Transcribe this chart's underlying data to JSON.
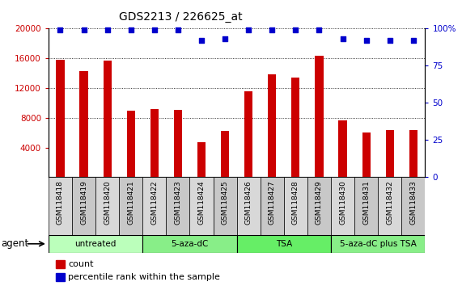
{
  "title": "GDS2213 / 226625_at",
  "samples": [
    "GSM118418",
    "GSM118419",
    "GSM118420",
    "GSM118421",
    "GSM118422",
    "GSM118423",
    "GSM118424",
    "GSM118425",
    "GSM118426",
    "GSM118427",
    "GSM118428",
    "GSM118429",
    "GSM118430",
    "GSM118431",
    "GSM118432",
    "GSM118433"
  ],
  "counts": [
    15800,
    14300,
    15700,
    9000,
    9200,
    9100,
    4700,
    6200,
    11600,
    13800,
    13400,
    16400,
    7700,
    6000,
    6300,
    6300
  ],
  "percentile_ranks": [
    99,
    99,
    99,
    99,
    99,
    99,
    92,
    93,
    99,
    99,
    99,
    99,
    93,
    92,
    92,
    92
  ],
  "bar_color": "#cc0000",
  "dot_color": "#0000cc",
  "ylim_left": [
    0,
    20000
  ],
  "ylim_right": [
    0,
    100
  ],
  "yticks_left": [
    4000,
    8000,
    12000,
    16000,
    20000
  ],
  "yticks_right": [
    0,
    25,
    50,
    75,
    100
  ],
  "groups": [
    {
      "label": "untreated",
      "start": 0,
      "end": 3,
      "color": "#bbffbb"
    },
    {
      "label": "5-aza-dC",
      "start": 4,
      "end": 7,
      "color": "#88ee88"
    },
    {
      "label": "TSA",
      "start": 8,
      "end": 11,
      "color": "#66ee66"
    },
    {
      "label": "5-aza-dC plus TSA",
      "start": 12,
      "end": 15,
      "color": "#88ee88"
    }
  ],
  "xlabel_agent": "agent",
  "legend_count_color": "#cc0000",
  "legend_dot_color": "#0000cc",
  "cell_bg_odd": "#d8d8d8",
  "cell_bg_even": "#c8c8c8",
  "plot_bg": "#ffffff",
  "title_fontsize": 10
}
